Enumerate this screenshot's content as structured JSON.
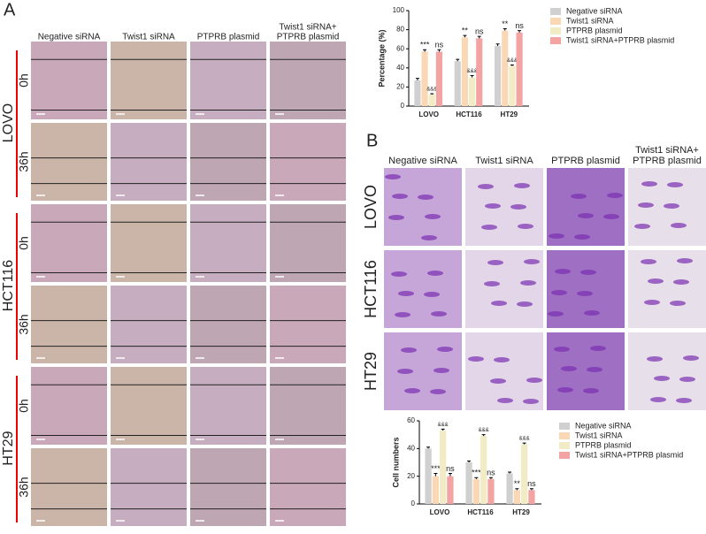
{
  "panel_a": {
    "label": "A",
    "columns": [
      [
        "Negative siRNA"
      ],
      [
        "Twist1 siRNA"
      ],
      [
        "PTPRB plasmid"
      ],
      [
        "Twist1 siRNA+",
        "PTPRB plasmid"
      ]
    ],
    "rows": [
      {
        "cell_line": "LOVO",
        "times": [
          "0h",
          "36h"
        ]
      },
      {
        "cell_line": "HCT116",
        "times": [
          "0h",
          "36h"
        ]
      },
      {
        "cell_line": "HT29",
        "times": [
          "0h",
          "36h"
        ]
      }
    ]
  },
  "panel_b": {
    "label": "B",
    "columns": [
      [
        "Negative siRNA"
      ],
      [
        "Twist1 siRNA"
      ],
      [
        "PTPRB plasmid"
      ],
      [
        "Twist1 siRNA+",
        "PTPRB plasmid"
      ]
    ],
    "rows": [
      "LOVO",
      "HCT116",
      "HT29"
    ]
  },
  "chart_data": [
    {
      "type": "bar",
      "y_label": "Percentage (%)",
      "categories": [
        "LOVO",
        "HCT116",
        "HT29"
      ],
      "ylim": [
        0,
        100
      ],
      "yticks": [
        0,
        20,
        40,
        60,
        80,
        100
      ],
      "series": [
        {
          "name": "Negative siRNA",
          "color": "#d0d0d0",
          "values": [
            27,
            47,
            63
          ],
          "errors": [
            2,
            2,
            2
          ],
          "annotations": [
            null,
            null,
            null
          ]
        },
        {
          "name": "Twist1 siRNA",
          "color": "#fbd8b5",
          "values": [
            57,
            72,
            79
          ],
          "errors": [
            2,
            2,
            2
          ],
          "annotations": [
            "***",
            "**",
            "**"
          ]
        },
        {
          "name": "PTPRB plasmid",
          "color": "#f1ecc6",
          "values": [
            12,
            30,
            42
          ],
          "errors": [
            1,
            2,
            1
          ],
          "annotations": [
            "&&&",
            "&&&",
            "&&&"
          ]
        },
        {
          "name": "Twist1 siRNA+PTPRB plasmid",
          "color": "#f4a3a3",
          "values": [
            57,
            71,
            77
          ],
          "errors": [
            2,
            2,
            2
          ],
          "annotations": [
            "ns",
            "ns",
            "ns"
          ]
        }
      ]
    },
    {
      "type": "bar",
      "y_label": "Cell numbers",
      "categories": [
        "LOVO",
        "HCT116",
        "HT29"
      ],
      "ylim": [
        0,
        60
      ],
      "yticks": [
        0,
        20,
        40,
        60
      ],
      "series": [
        {
          "name": "Negative siRNA",
          "color": "#d0d0d0",
          "values": [
            40,
            30,
            22
          ],
          "errors": [
            1,
            1,
            1
          ],
          "annotations": [
            null,
            null,
            null
          ]
        },
        {
          "name": "Twist1 siRNA",
          "color": "#fbd8b5",
          "values": [
            20,
            18,
            10
          ],
          "errors": [
            2,
            1,
            1
          ],
          "annotations": [
            "***",
            "***",
            "**"
          ]
        },
        {
          "name": "PTPRB plasmid",
          "color": "#f1ecc6",
          "values": [
            53,
            49,
            43
          ],
          "errors": [
            1,
            1,
            1
          ],
          "annotations": [
            "&&&",
            "&&&",
            "&&&"
          ]
        },
        {
          "name": "Twist1 siRNA+PTPRB plasmid",
          "color": "#f4a3a3",
          "values": [
            20,
            18,
            10
          ],
          "errors": [
            2,
            1,
            1
          ],
          "annotations": [
            "ns",
            "ns",
            "ns"
          ]
        }
      ]
    }
  ]
}
